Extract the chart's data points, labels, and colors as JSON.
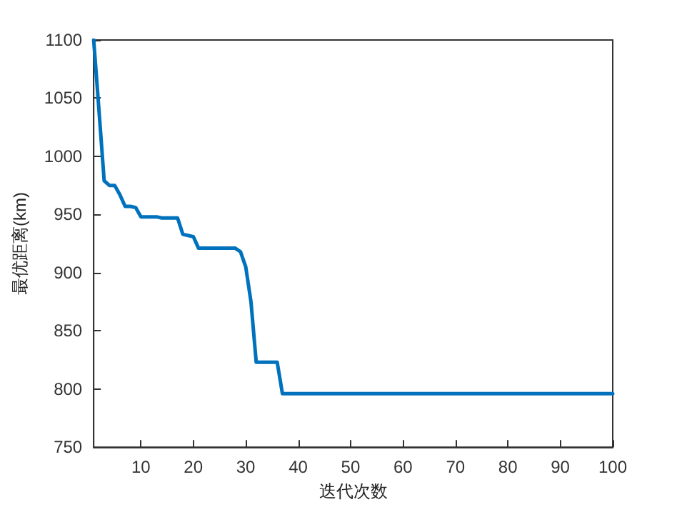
{
  "chart_data": {
    "type": "line",
    "xlabel": "迭代次数",
    "ylabel": "最优距离(km)",
    "x": [
      1,
      2,
      3,
      4,
      5,
      6,
      7,
      8,
      9,
      10,
      13,
      14,
      17,
      18,
      19,
      20,
      21,
      28,
      29,
      30,
      31,
      32,
      36,
      37,
      100
    ],
    "series": [
      {
        "color": "#0072bd",
        "values": [
          1100,
          1040,
          979,
          975,
          975,
          967,
          957,
          957,
          956,
          948,
          948,
          947,
          947,
          933,
          932,
          931,
          921,
          921,
          918,
          905,
          875,
          823,
          823,
          796,
          796
        ]
      }
    ],
    "xlim": [
      1,
      100
    ],
    "xticks": [
      10,
      20,
      30,
      40,
      50,
      60,
      70,
      80,
      90,
      100
    ],
    "ylim": [
      750,
      1100
    ],
    "yticks": [
      750,
      800,
      850,
      900,
      950,
      1000,
      1050,
      1100
    ],
    "marker": "none",
    "line_style": "solid"
  }
}
